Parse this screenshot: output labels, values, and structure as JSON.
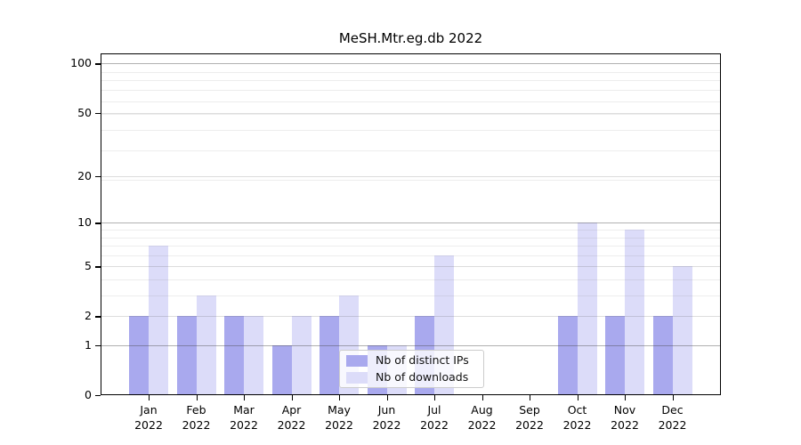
{
  "title": "MeSH.Mtr.eg.db 2022",
  "chart_data": {
    "type": "bar",
    "title": "MeSH.Mtr.eg.db 2022",
    "categories": [
      "Jan",
      "Feb",
      "Mar",
      "Apr",
      "May",
      "Jun",
      "Jul",
      "Aug",
      "Sep",
      "Oct",
      "Nov",
      "Dec"
    ],
    "year_label": "2022",
    "series": [
      {
        "name": "Nb of distinct IPs",
        "color": "#a9a9ee",
        "values": [
          2,
          2,
          2,
          1,
          2,
          1,
          2,
          0,
          0,
          2,
          2,
          2
        ]
      },
      {
        "name": "Nb of downloads",
        "color": "#dcdcf9",
        "values": [
          7,
          3,
          2,
          2,
          3,
          1,
          6,
          0,
          0,
          10,
          9,
          5
        ]
      }
    ],
    "xlabel": "",
    "ylabel": "",
    "yticks": [
      0,
      1,
      2,
      5,
      10,
      20,
      50,
      100
    ],
    "decade_gridlines": [
      1,
      10,
      100
    ],
    "mid_gridlines": [
      2,
      5,
      20,
      50
    ],
    "minor_gridlines": [
      3,
      4,
      6,
      7,
      8,
      9,
      19,
      29,
      39,
      49,
      59,
      69,
      79,
      89
    ],
    "scale": "log10(1+v)",
    "ylim": [
      0,
      113
    ],
    "grid": true,
    "legend_position": "lower center-right"
  }
}
